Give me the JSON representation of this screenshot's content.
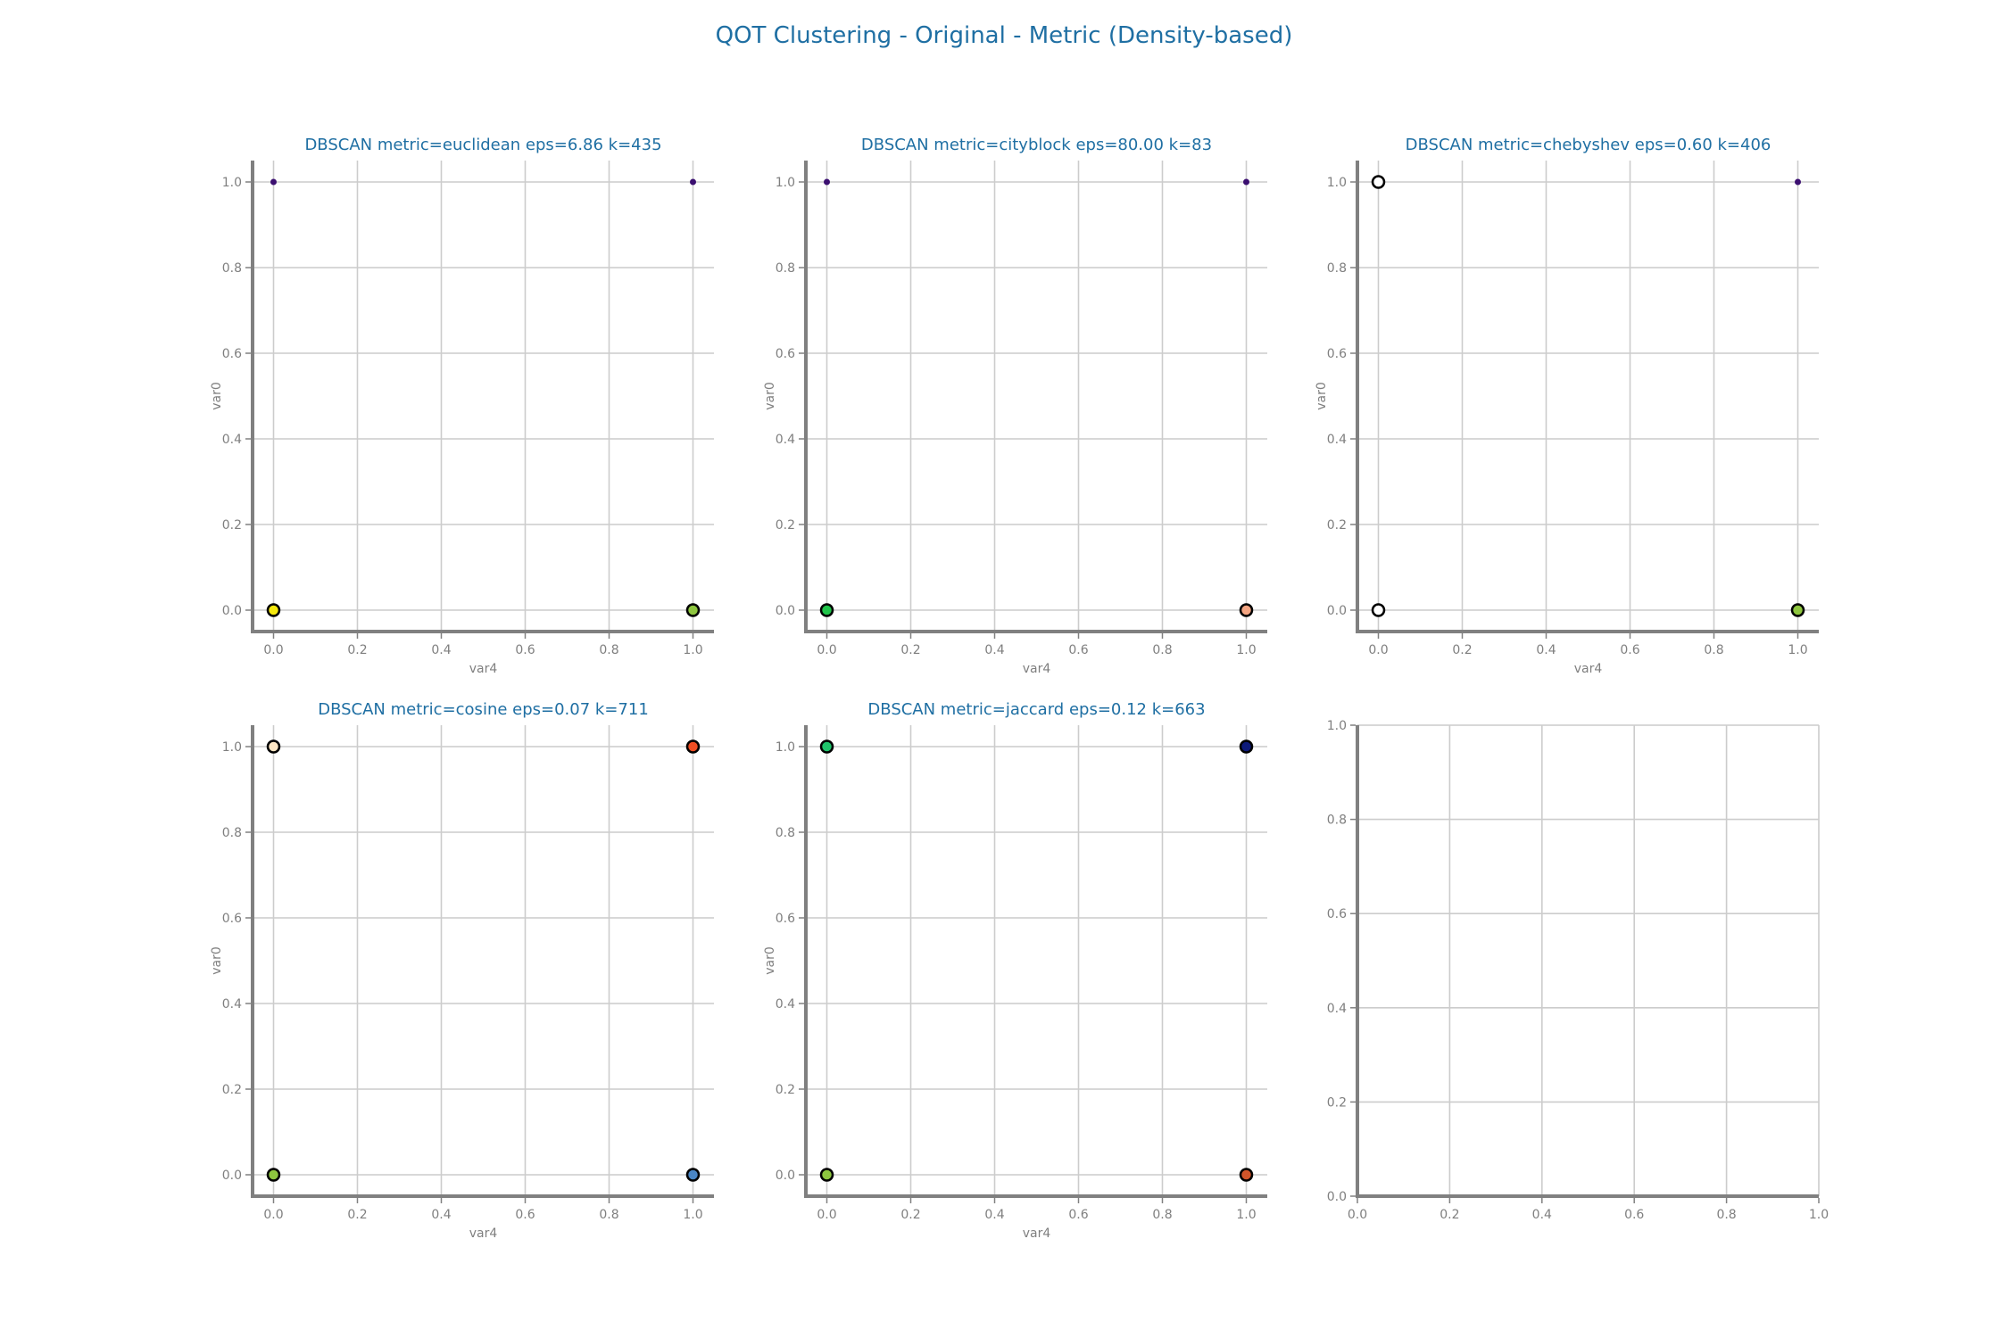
{
  "figure": {
    "title": "QOT Clustering - Original - Metric (Density-based)",
    "title_color": "#1f6fa3"
  },
  "chart_data": [
    {
      "type": "scatter",
      "title": "DBSCAN metric=euclidean eps=6.86 k=435",
      "xlabel": "var4",
      "ylabel": "var0",
      "xlim": [
        -0.05,
        1.05
      ],
      "ylim": [
        -0.05,
        1.05
      ],
      "xticks": [
        "0.0",
        "0.2",
        "0.4",
        "0.6",
        "0.8",
        "1.0"
      ],
      "yticks": [
        "0.0",
        "0.2",
        "0.4",
        "0.6",
        "0.8",
        "1.0"
      ],
      "grid": true,
      "points": [
        {
          "x": 0,
          "y": 1,
          "color": "#3b0f70",
          "marker": "small"
        },
        {
          "x": 1,
          "y": 1,
          "color": "#3b0f70",
          "marker": "small"
        },
        {
          "x": 0,
          "y": 0,
          "color": "#f5e90e",
          "marker": "large"
        },
        {
          "x": 1,
          "y": 0,
          "color": "#8ec63f",
          "marker": "large"
        }
      ]
    },
    {
      "type": "scatter",
      "title": "DBSCAN metric=cityblock eps=80.00 k=83",
      "xlabel": "var4",
      "ylabel": "var0",
      "xlim": [
        -0.05,
        1.05
      ],
      "ylim": [
        -0.05,
        1.05
      ],
      "xticks": [
        "0.0",
        "0.2",
        "0.4",
        "0.6",
        "0.8",
        "1.0"
      ],
      "yticks": [
        "0.0",
        "0.2",
        "0.4",
        "0.6",
        "0.8",
        "1.0"
      ],
      "grid": true,
      "points": [
        {
          "x": 0,
          "y": 1,
          "color": "#3b0f70",
          "marker": "small"
        },
        {
          "x": 1,
          "y": 1,
          "color": "#3b0f70",
          "marker": "small"
        },
        {
          "x": 0,
          "y": 0,
          "color": "#21c44a",
          "marker": "large"
        },
        {
          "x": 1,
          "y": 0,
          "color": "#f4a582",
          "marker": "large"
        }
      ]
    },
    {
      "type": "scatter",
      "title": "DBSCAN metric=chebyshev eps=0.60 k=406",
      "xlabel": "var4",
      "ylabel": "var0",
      "xlim": [
        -0.05,
        1.05
      ],
      "ylim": [
        -0.05,
        1.05
      ],
      "xticks": [
        "0.0",
        "0.2",
        "0.4",
        "0.6",
        "0.8",
        "1.0"
      ],
      "yticks": [
        "0.0",
        "0.2",
        "0.4",
        "0.6",
        "0.8",
        "1.0"
      ],
      "grid": true,
      "points": [
        {
          "x": 0,
          "y": 1,
          "color": "#ffffff",
          "marker": "large"
        },
        {
          "x": 1,
          "y": 1,
          "color": "#3b0f70",
          "marker": "small"
        },
        {
          "x": 0,
          "y": 0,
          "color": "#ffffff",
          "marker": "large"
        },
        {
          "x": 1,
          "y": 0,
          "color": "#8ec63f",
          "marker": "large"
        }
      ]
    },
    {
      "type": "scatter",
      "title": "DBSCAN metric=cosine eps=0.07 k=711",
      "xlabel": "var4",
      "ylabel": "var0",
      "xlim": [
        -0.05,
        1.05
      ],
      "ylim": [
        -0.05,
        1.05
      ],
      "xticks": [
        "0.0",
        "0.2",
        "0.4",
        "0.6",
        "0.8",
        "1.0"
      ],
      "yticks": [
        "0.0",
        "0.2",
        "0.4",
        "0.6",
        "0.8",
        "1.0"
      ],
      "grid": true,
      "points": [
        {
          "x": 0,
          "y": 1,
          "color": "#fde6c4",
          "marker": "large"
        },
        {
          "x": 1,
          "y": 1,
          "color": "#f04e23",
          "marker": "large"
        },
        {
          "x": 0,
          "y": 0,
          "color": "#8ec63f",
          "marker": "large"
        },
        {
          "x": 1,
          "y": 0,
          "color": "#4a86c5",
          "marker": "large"
        }
      ]
    },
    {
      "type": "scatter",
      "title": "DBSCAN metric=jaccard eps=0.12 k=663",
      "xlabel": "var4",
      "ylabel": "var0",
      "xlim": [
        -0.05,
        1.05
      ],
      "ylim": [
        -0.05,
        1.05
      ],
      "xticks": [
        "0.0",
        "0.2",
        "0.4",
        "0.6",
        "0.8",
        "1.0"
      ],
      "yticks": [
        "0.0",
        "0.2",
        "0.4",
        "0.6",
        "0.8",
        "1.0"
      ],
      "grid": true,
      "points": [
        {
          "x": 0,
          "y": 1,
          "color": "#1fc46b",
          "marker": "large"
        },
        {
          "x": 1,
          "y": 1,
          "color": "#0d1a7a",
          "marker": "large"
        },
        {
          "x": 0,
          "y": 0,
          "color": "#8ec63f",
          "marker": "large"
        },
        {
          "x": 1,
          "y": 0,
          "color": "#d1552a",
          "marker": "large"
        }
      ]
    },
    {
      "type": "scatter",
      "title": "",
      "xlabel": "",
      "ylabel": "",
      "xlim": [
        0,
        1
      ],
      "ylim": [
        0,
        1
      ],
      "xticks": [
        "0.0",
        "0.2",
        "0.4",
        "0.6",
        "0.8",
        "1.0"
      ],
      "yticks": [
        "0.0",
        "0.2",
        "0.4",
        "0.6",
        "0.8",
        "1.0"
      ],
      "grid": true,
      "points": []
    }
  ]
}
